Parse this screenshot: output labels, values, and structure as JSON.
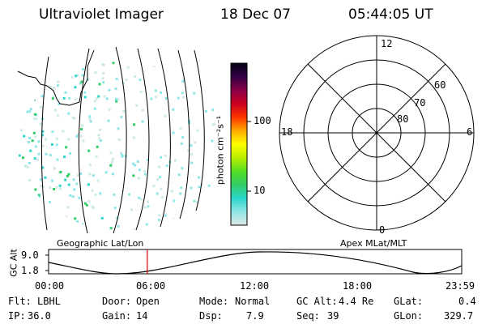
{
  "header": {
    "instrument": "Ultraviolet Imager",
    "date": "18 Dec 07",
    "time": "05:44:05 UT"
  },
  "colorbar": {
    "unit_label": "photon cm⁻²s⁻¹",
    "ticks": [
      "100",
      "10"
    ]
  },
  "polar_plot": {
    "mlt_labels": {
      "top": "12",
      "left": "18",
      "right": "6",
      "bottom": "0"
    },
    "lat_labels": [
      "60",
      "70",
      "80"
    ]
  },
  "orbit": {
    "left_title": "Geographic Lat/Lon",
    "right_title": "Apex MLat/MLT",
    "axis_label": "GC Alt",
    "y_ticks": [
      "9.0",
      "1.8"
    ],
    "x_ticks": [
      "00:00",
      "06:00",
      "12:00",
      "18:00",
      "23:59"
    ],
    "marker_time_hours": 5.73
  },
  "status": {
    "flt_key": "Flt:",
    "flt_val": "LBHL",
    "door_key": "Door:",
    "door_val": "Open",
    "mode_key": "Mode:",
    "mode_val": "Normal",
    "gcalt_key": "GC Alt:",
    "gcalt_val": "4.4 Re",
    "glat_key": "GLat:",
    "glat_val": "0.4",
    "ip_key": "IP:",
    "ip_val": "36.0",
    "gain_key": "Gain:",
    "gain_val": "14",
    "dsp_key": "Dsp:",
    "dsp_val": "7.9",
    "seq_key": "Seq:",
    "seq_val": "39",
    "glon_key": "GLon:",
    "glon_val": "329.7"
  },
  "colors": {
    "marker": "#dd0000",
    "colorbar_stops": [
      "#dfe9e9",
      "#8fe6e6",
      "#2bd6cc",
      "#33cc66",
      "#55dd22",
      "#bbee00",
      "#ffff00",
      "#ffaa00",
      "#ff3300",
      "#cc0022",
      "#880044",
      "#330044",
      "#000011"
    ]
  }
}
